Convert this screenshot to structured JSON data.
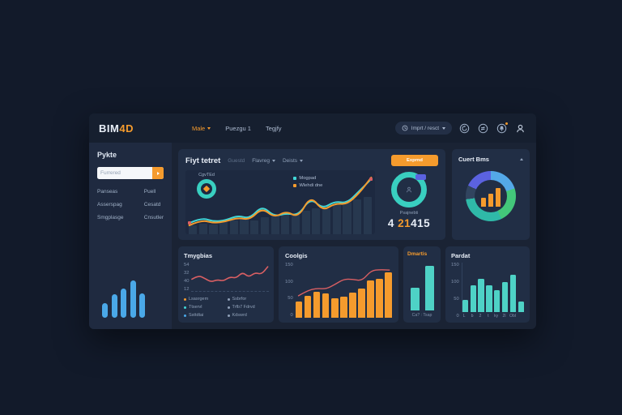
{
  "topbar": {
    "logo_part1": "BIM",
    "logo_part2": "4D",
    "nav": [
      {
        "label": "Male",
        "caret": true
      },
      {
        "label": "Puezgu 1",
        "caret": false
      },
      {
        "label": "Tegjfy",
        "caret": false
      }
    ],
    "time_range_label": "Imprt / resct"
  },
  "sidebar": {
    "title": "Pykte",
    "search_placeholder": "Furrered",
    "links": [
      {
        "left": "Panseas",
        "right": "Puell"
      },
      {
        "left": "Asserspag",
        "right": "Cesatd"
      },
      {
        "left": "Smgplasge",
        "right": "Cnsutler"
      }
    ],
    "signal_bars": [
      35,
      55,
      70,
      88,
      58
    ],
    "signal_color": "#4aa8e8"
  },
  "main_panel": {
    "title": "Fiyt tetret",
    "tab_muted": "Guestd",
    "dropdown1": "Flavreg",
    "dropdown2": "Deists",
    "action_button": "Exprnd",
    "chart_badge": "CgvTEd",
    "legend": [
      {
        "label": "Mogpad",
        "color": "#41d6d6"
      },
      {
        "label": "Wlehdi dne",
        "color": "#f59b2d"
      }
    ],
    "stat_label": "Psajnebti",
    "stat_value": {
      "p1": "4 ",
      "p2": "21",
      "p3": "415"
    }
  },
  "cuert_panel": {
    "title": "Cuert Bms"
  },
  "tmygbias_panel": {
    "title": "Tmygbias",
    "yticks": [
      "54",
      "32",
      "40",
      "12"
    ],
    "legend": [
      {
        "label": "Lsasrgem",
        "color": "#f59b2d"
      },
      {
        "label": "Ssbrfor",
        "color": "#8fa0b8"
      },
      {
        "label": "Ttservl",
        "color": "#41d6d6"
      },
      {
        "label": "Trfb7 Fdrvd",
        "color": "#8fa0b8"
      },
      {
        "label": "Ssttdtai",
        "color": "#4aa8e8"
      },
      {
        "label": "Kdswrd",
        "color": "#8fa0b8"
      }
    ]
  },
  "coolgis_panel": {
    "title": "Coolgis",
    "yticks": [
      "150",
      "100",
      "50",
      "0"
    ]
  },
  "dmartis_panel": {
    "title": "Dmartis",
    "xlabel": "Ca? : Tsap"
  },
  "pardat_panel": {
    "title": "Pardat",
    "yticks": [
      "150",
      "100",
      "50",
      "0"
    ],
    "xticks": [
      "L",
      "b",
      "2",
      "t",
      "ky",
      "2l",
      "Obl",
      ""
    ]
  },
  "chart_data": [
    {
      "id": "main-line",
      "type": "line",
      "title": "Fiyt tetret",
      "ylim": [
        0,
        100
      ],
      "legend_position": "top-right",
      "grid": false,
      "background_bars": [
        14,
        17,
        15,
        19,
        21,
        24,
        22,
        26,
        29,
        33,
        31,
        37,
        41,
        39,
        45,
        49,
        54,
        58
      ],
      "series": [
        {
          "name": "Mogpad",
          "color": "#41d6d6",
          "values": [
            12,
            22,
            15,
            17,
            26,
            20,
            44,
            24,
            30,
            26,
            58,
            38,
            52,
            48,
            70,
            92
          ]
        },
        {
          "name": "Wlehdi dne",
          "color": "#f59b2d",
          "values": [
            8,
            18,
            12,
            15,
            22,
            18,
            40,
            22,
            34,
            22,
            62,
            34,
            48,
            46,
            66,
            95
          ]
        }
      ],
      "end_marker_color": "#d95f63"
    },
    {
      "id": "teal-donut",
      "type": "pie",
      "values": [
        100
      ],
      "colors": [
        "#39cfc0"
      ],
      "label": "Psajnebti",
      "big_number": "4 21415"
    },
    {
      "id": "cuert-donut",
      "type": "pie",
      "title": "Cuert Bms",
      "segments": [
        {
          "color": "#54a8e8",
          "pct": 20
        },
        {
          "color": "#43c77a",
          "pct": 23
        },
        {
          "color": "#2fb9a8",
          "pct": 30
        },
        {
          "color": "#31445f",
          "pct": 9
        },
        {
          "color": "#5b62e0",
          "pct": 18
        }
      ],
      "inner_bars": {
        "color": "#f59b2d",
        "values": [
          42,
          62,
          88
        ]
      }
    },
    {
      "id": "tmygbias-line",
      "type": "line",
      "title": "Tmygbias",
      "color": "#d95f63",
      "ylim": [
        10,
        60
      ],
      "values": [
        30,
        38,
        32,
        24,
        29,
        26,
        35,
        32,
        45,
        34,
        44,
        40,
        56
      ]
    },
    {
      "id": "coolgis-bars",
      "type": "bar",
      "title": "Coolgis",
      "bar_color": "#f59b2d",
      "line_color": "#d95f63",
      "ylim": [
        0,
        130
      ],
      "values": [
        38,
        52,
        62,
        58,
        45,
        50,
        60,
        68,
        88,
        92,
        108
      ],
      "line_overlay": [
        50,
        64,
        70,
        68,
        80,
        95,
        94,
        90,
        118,
        120,
        119
      ]
    },
    {
      "id": "dmartis-bars",
      "type": "bar",
      "title": "Dmartis",
      "bar_color": "#4ed2c6",
      "ylim": [
        0,
        100
      ],
      "values": [
        45,
        88
      ]
    },
    {
      "id": "pardat-bars",
      "type": "bar",
      "title": "Pardat",
      "bar_color": "#4ed2c6",
      "ylim": [
        0,
        150
      ],
      "values": [
        38,
        82,
        100,
        82,
        66,
        90,
        112,
        32
      ]
    }
  ]
}
